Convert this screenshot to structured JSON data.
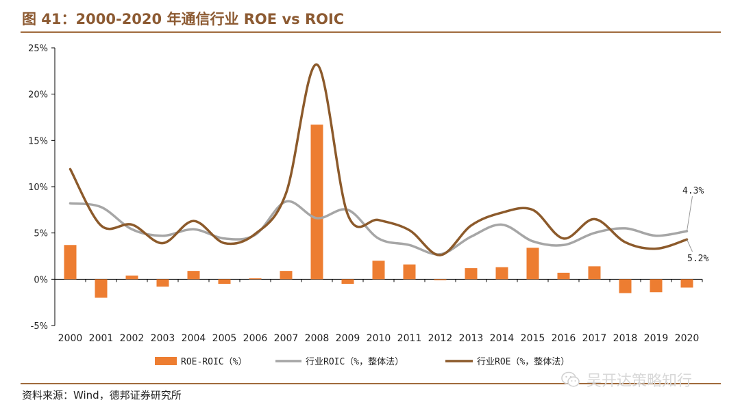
{
  "header": {
    "title": "图 41：2000-2020 年通信行业 ROE vs ROIC"
  },
  "footer": {
    "source": "资料来源：Wind，德邦证券研究所"
  },
  "watermark": {
    "text": "吴开达策略知行",
    "icon": "wechat-icon"
  },
  "colors": {
    "bar": "#ed7d31",
    "roic_line": "#a6a6a6",
    "roe_line": "#8c5a2b",
    "accent": "#a06a3c"
  },
  "chart_data": {
    "type": "bar+line",
    "categories": [
      "2000",
      "2001",
      "2002",
      "2003",
      "2004",
      "2005",
      "2006",
      "2007",
      "2008",
      "2009",
      "2010",
      "2011",
      "2012",
      "2013",
      "2014",
      "2015",
      "2016",
      "2017",
      "2018",
      "2019",
      "2020"
    ],
    "ylim": [
      -5,
      25
    ],
    "yticks": [
      -5,
      0,
      5,
      10,
      15,
      20,
      25
    ],
    "ytick_labels": [
      "-5%",
      "0%",
      "5%",
      "10%",
      "15%",
      "20%",
      "25%"
    ],
    "grid": false,
    "legend_position": "bottom",
    "series": [
      {
        "name": "ROE-ROIC（%）",
        "type": "bar",
        "color": "#ed7d31",
        "values": [
          3.7,
          -2.0,
          0.4,
          -0.8,
          0.9,
          -0.5,
          0.1,
          0.9,
          16.7,
          -0.5,
          2.0,
          1.6,
          -0.1,
          1.2,
          1.3,
          3.4,
          0.7,
          1.4,
          -1.5,
          -1.4,
          -0.9
        ]
      },
      {
        "name": "行业ROIC（%，整体法）",
        "type": "line",
        "color": "#a6a6a6",
        "values": [
          8.2,
          7.8,
          5.4,
          4.7,
          5.4,
          4.4,
          4.8,
          8.4,
          6.6,
          7.5,
          4.4,
          3.7,
          2.7,
          4.6,
          5.9,
          4.1,
          3.7,
          5.0,
          5.5,
          4.7,
          5.2
        ]
      },
      {
        "name": "行业ROE（%，整体法）",
        "type": "line",
        "color": "#8c5a2b",
        "values": [
          11.9,
          5.8,
          5.9,
          3.9,
          6.3,
          3.9,
          4.9,
          9.3,
          23.2,
          7.0,
          6.4,
          5.3,
          2.6,
          5.8,
          7.2,
          7.5,
          4.4,
          6.5,
          4.0,
          3.3,
          4.3
        ]
      }
    ],
    "annotations": [
      {
        "text": "4.3%",
        "series": "行业ROE（%，整体法）",
        "category": "2020"
      },
      {
        "text": "5.2%",
        "series": "行业ROIC（%，整体法）",
        "category": "2020"
      }
    ]
  }
}
